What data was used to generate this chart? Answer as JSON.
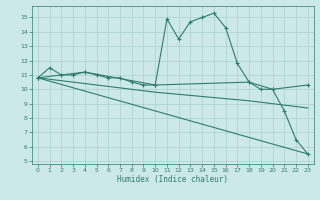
{
  "xlabel": "Humidex (Indice chaleur)",
  "background_color": "#cce8e8",
  "line_color": "#2e7d6e",
  "grid_color": "#aacfcf",
  "xlim": [
    -0.5,
    23.5
  ],
  "ylim": [
    4.8,
    15.8
  ],
  "yticks": [
    5,
    6,
    7,
    8,
    9,
    10,
    11,
    12,
    13,
    14,
    15
  ],
  "xticks": [
    0,
    1,
    2,
    3,
    4,
    5,
    6,
    7,
    8,
    9,
    10,
    11,
    12,
    13,
    14,
    15,
    16,
    17,
    18,
    19,
    20,
    21,
    22,
    23
  ],
  "series_main": [
    [
      0,
      10.8
    ],
    [
      1,
      11.5
    ],
    [
      2,
      11.0
    ],
    [
      3,
      11.0
    ],
    [
      4,
      11.2
    ],
    [
      5,
      11.0
    ],
    [
      6,
      10.8
    ],
    [
      7,
      10.8
    ],
    [
      8,
      10.5
    ],
    [
      9,
      10.3
    ],
    [
      10,
      10.3
    ],
    [
      11,
      14.9
    ],
    [
      12,
      13.5
    ],
    [
      13,
      14.7
    ],
    [
      14,
      15.0
    ],
    [
      15,
      15.3
    ],
    [
      16,
      14.3
    ],
    [
      17,
      11.8
    ],
    [
      18,
      10.5
    ],
    [
      19,
      10.0
    ],
    [
      20,
      10.0
    ],
    [
      21,
      8.5
    ],
    [
      22,
      6.5
    ],
    [
      23,
      5.5
    ]
  ],
  "series_trend1": [
    [
      0,
      10.8
    ],
    [
      4,
      11.2
    ],
    [
      10,
      10.3
    ],
    [
      18,
      10.5
    ],
    [
      20,
      10.0
    ],
    [
      23,
      10.3
    ]
  ],
  "series_trend2": [
    [
      0,
      10.8
    ],
    [
      10,
      9.8
    ],
    [
      18,
      9.2
    ],
    [
      23,
      8.7
    ]
  ],
  "series_trend3": [
    [
      0,
      10.8
    ],
    [
      23,
      5.5
    ]
  ]
}
